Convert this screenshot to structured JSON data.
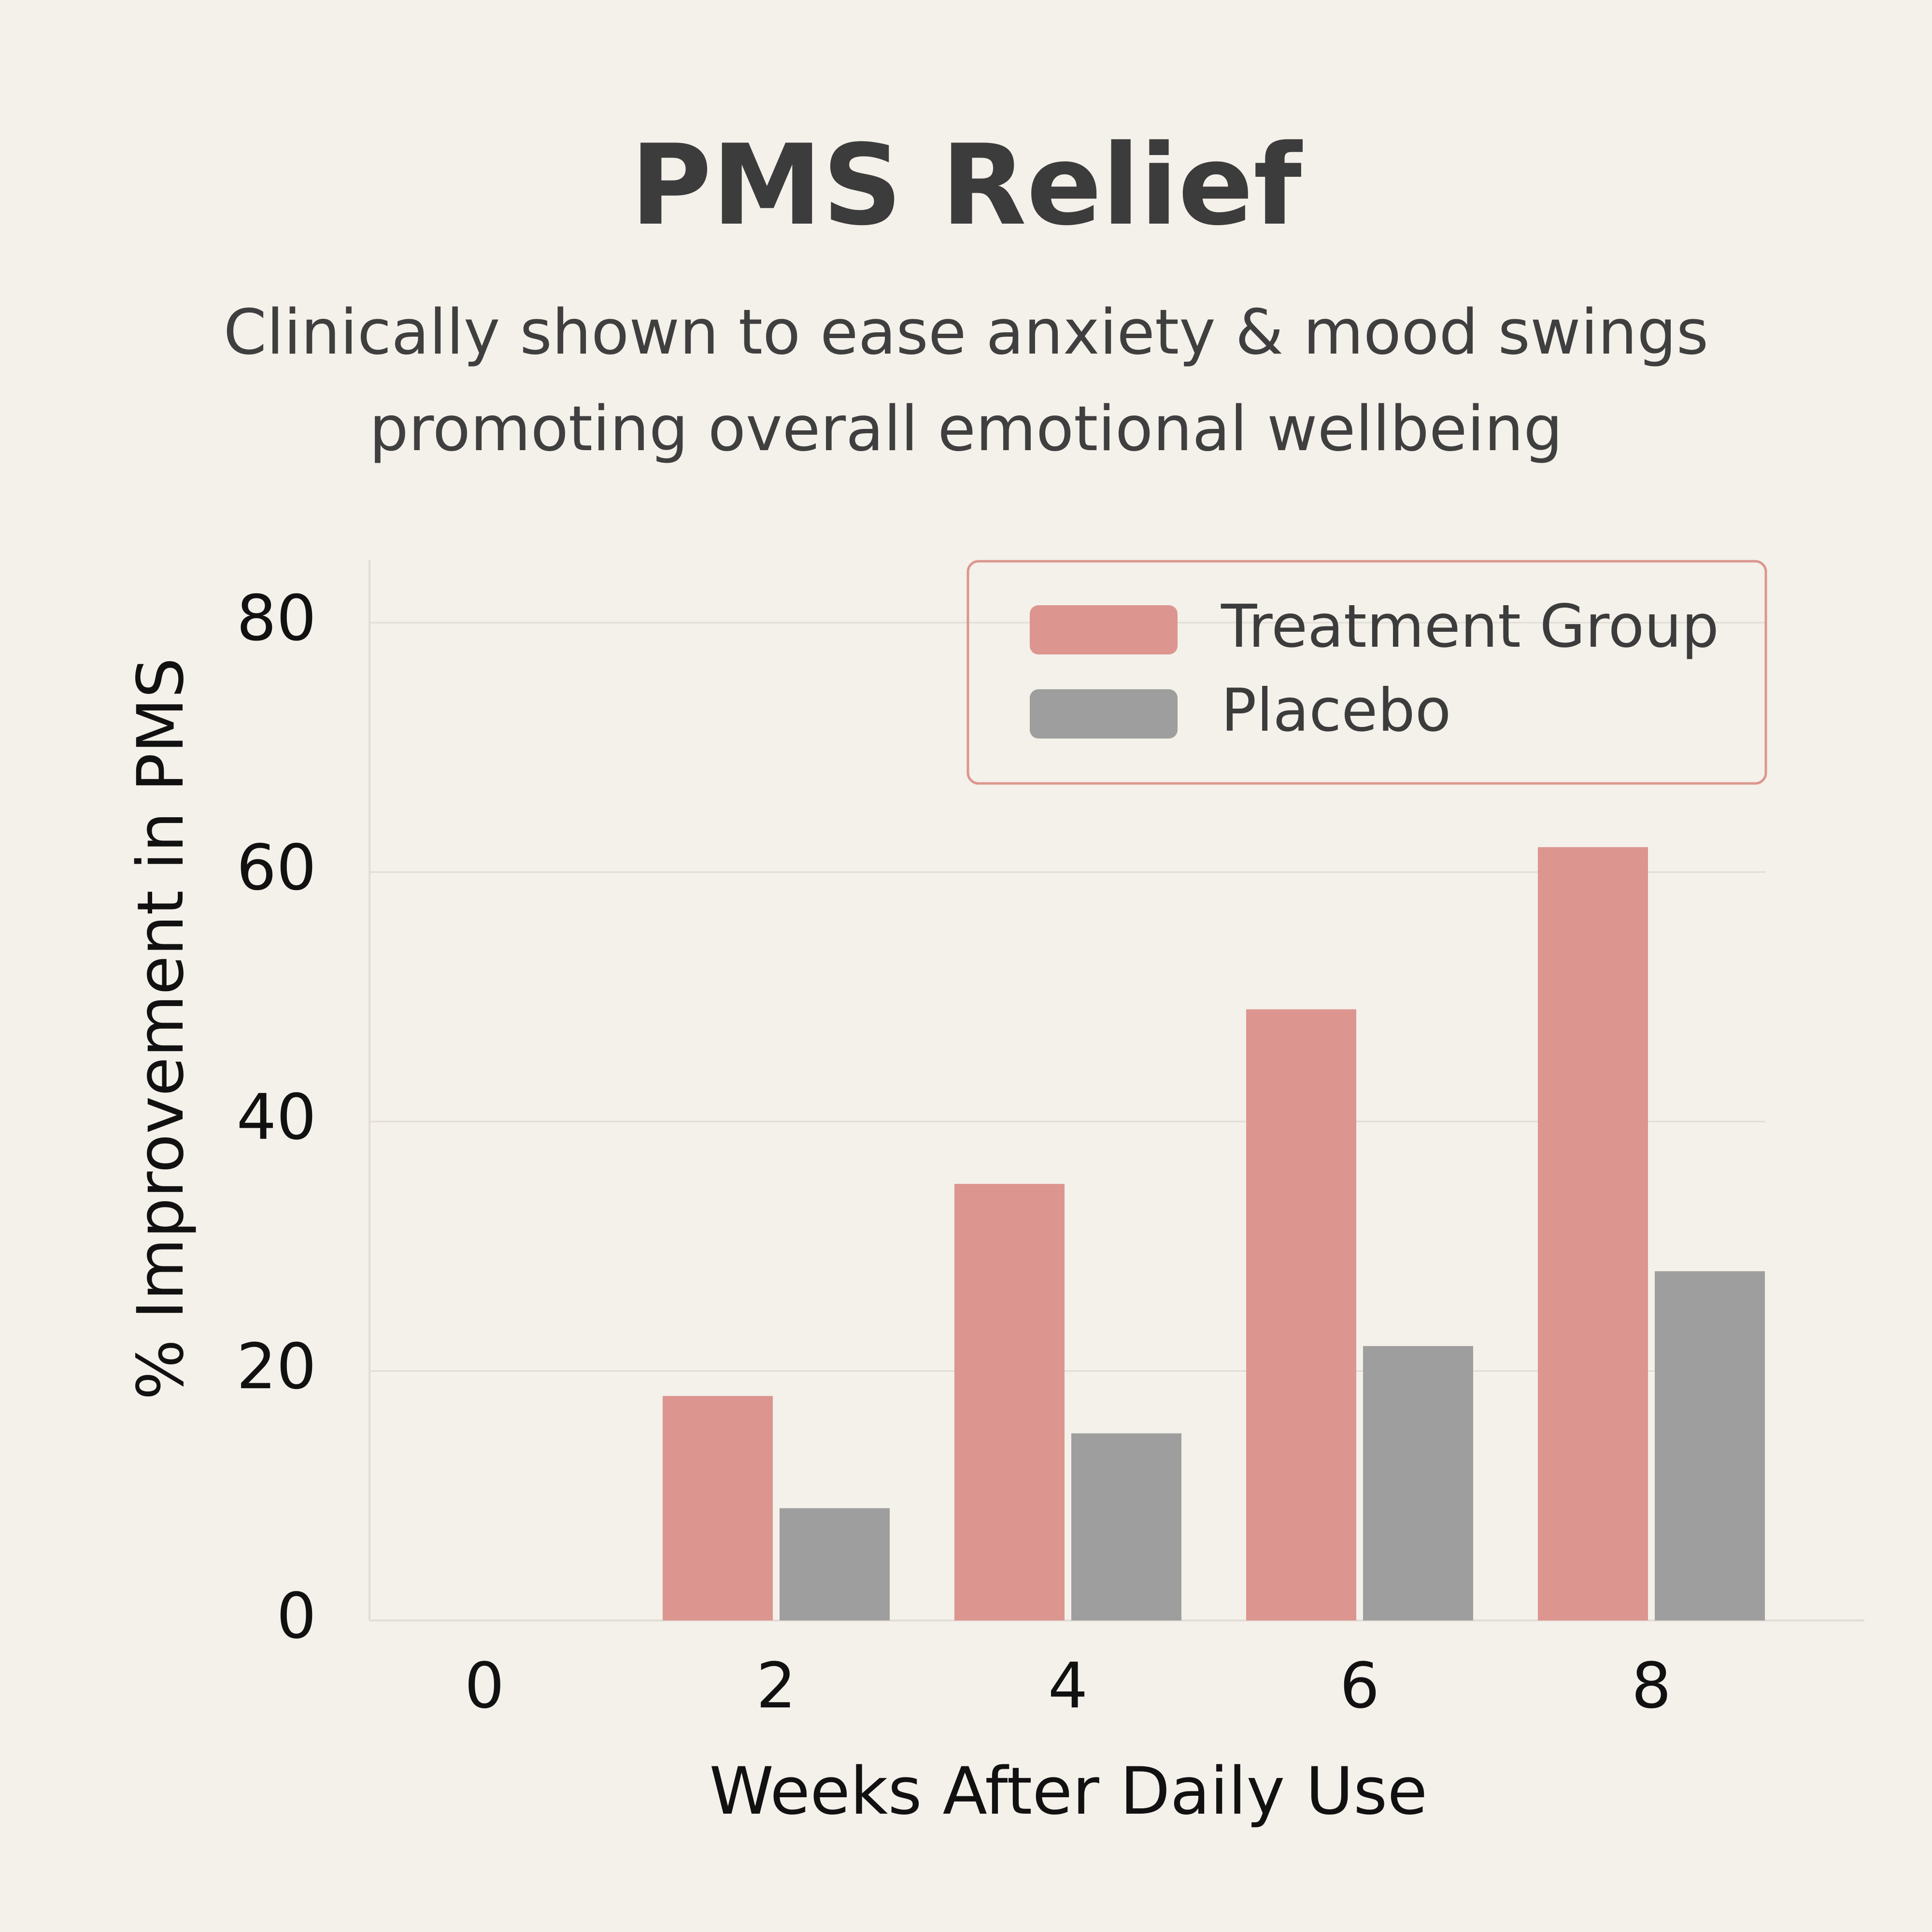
{
  "title": "PMS Relief",
  "subtitle_lines": [
    "Clinically shown to ease anxiety & mood swings",
    "promoting overall emotional wellbeing"
  ],
  "colors": {
    "background": "#f4f0ea",
    "treatment": "#dc968f",
    "placebo": "#9e9e9e",
    "legend_border": "#dc968f",
    "text": "#3c3c3c",
    "grid": "#e2ddd6"
  },
  "chart_data": {
    "type": "bar",
    "xlabel": "Weeks After Daily Use",
    "ylabel": "% Improvement in PMS",
    "categories": [
      "0",
      "2",
      "4",
      "6",
      "8"
    ],
    "x_ticks": [
      "0",
      "2",
      "4",
      "6",
      "8"
    ],
    "y_ticks": [
      "0",
      "20",
      "40",
      "60",
      "80"
    ],
    "ylim": [
      0,
      85
    ],
    "grid": "horizontal",
    "legend_position": "top-right",
    "series": [
      {
        "name": "Treatment Group",
        "values": [
          0,
          18,
          35,
          49,
          62
        ]
      },
      {
        "name": "Placebo",
        "values": [
          0,
          9,
          15,
          22,
          28
        ]
      }
    ]
  }
}
